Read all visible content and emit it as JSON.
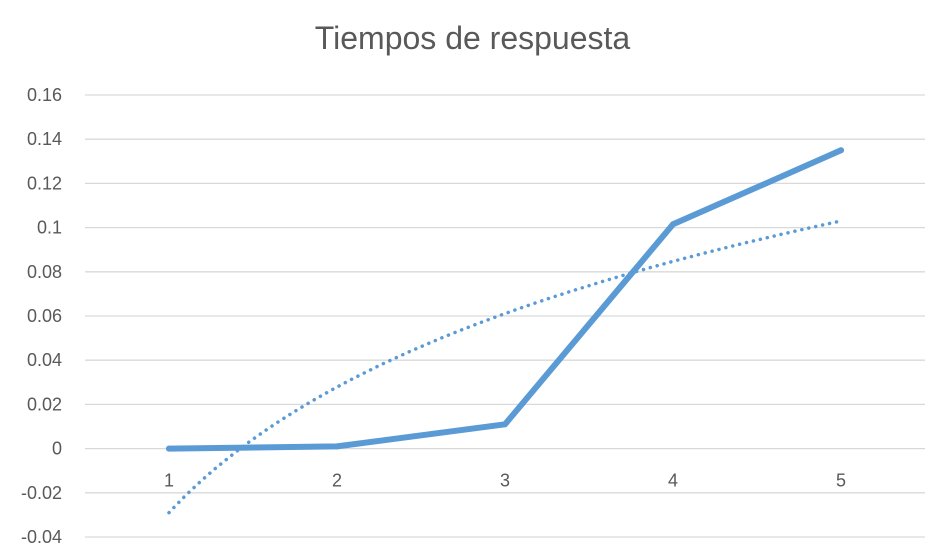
{
  "chart_data": {
    "type": "line",
    "title": "Tiempos de respuesta",
    "xlabel": "",
    "ylabel": "",
    "categories": [
      "1",
      "2",
      "3",
      "4",
      "5"
    ],
    "series": [
      {
        "values": [
          0.0,
          0.001,
          0.011,
          0.1015,
          0.135
        ],
        "color": "#5B9BD5",
        "style": "solid"
      }
    ],
    "trendline": {
      "kind": "logarithmic",
      "values": [
        -0.029,
        0.027,
        0.061,
        0.085,
        0.103
      ],
      "color": "#5B9BD5",
      "style": "dotted"
    },
    "ylim": [
      -0.04,
      0.16
    ],
    "yticks": [
      -0.04,
      -0.02,
      0,
      0.02,
      0.04,
      0.06,
      0.08,
      0.1,
      0.12,
      0.14,
      0.16
    ],
    "ytick_labels": [
      "-0.04",
      "-0.02",
      "0",
      "0.02",
      "0.04",
      "0.06",
      "0.08",
      "0.1",
      "0.12",
      "0.14",
      "0.16"
    ],
    "grid": true,
    "gridline_color": "#D9D9D9",
    "legend": "none"
  }
}
